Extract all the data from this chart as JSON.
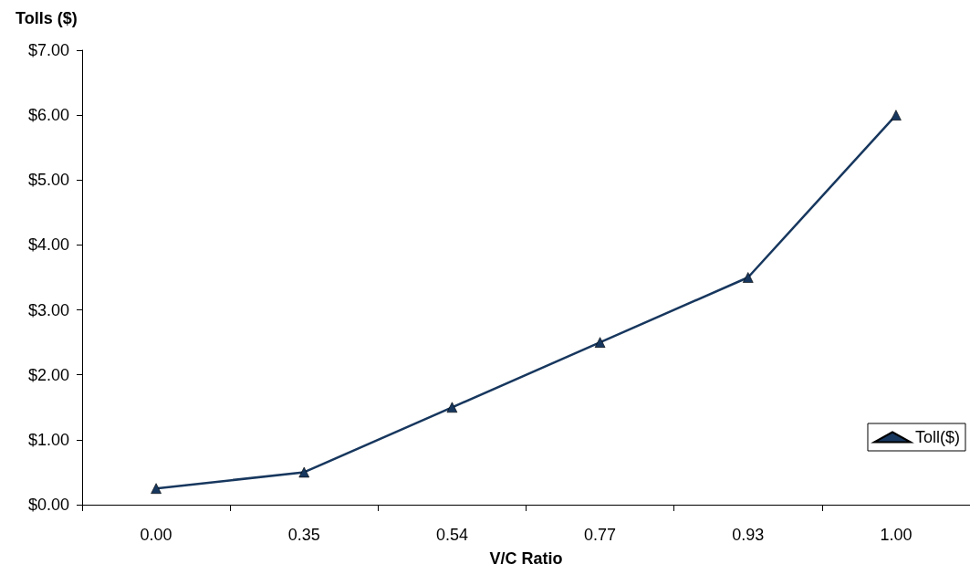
{
  "chart_data": {
    "type": "line",
    "ylabel": "Tolls ($)",
    "xlabel": "V/C Ratio",
    "categories": [
      "0.00",
      "0.35",
      "0.54",
      "0.77",
      "0.93",
      "1.00"
    ],
    "series": [
      {
        "name": "Toll($)",
        "color": "#17375e",
        "values": [
          0.25,
          0.5,
          1.5,
          2.5,
          3.5,
          6.0
        ]
      }
    ],
    "ylim": [
      0,
      7
    ],
    "yticks": [
      {
        "value": 0,
        "label": "$0.00"
      },
      {
        "value": 1,
        "label": "$1.00"
      },
      {
        "value": 2,
        "label": "$2.00"
      },
      {
        "value": 3,
        "label": "$3.00"
      },
      {
        "value": 4,
        "label": "$4.00"
      },
      {
        "value": 5,
        "label": "$5.00"
      },
      {
        "value": 6,
        "label": "$6.00"
      },
      {
        "value": 7,
        "label": "$7.00"
      }
    ],
    "grid": false,
    "legend": "right",
    "marker": "triangle",
    "line_style": "solid"
  }
}
